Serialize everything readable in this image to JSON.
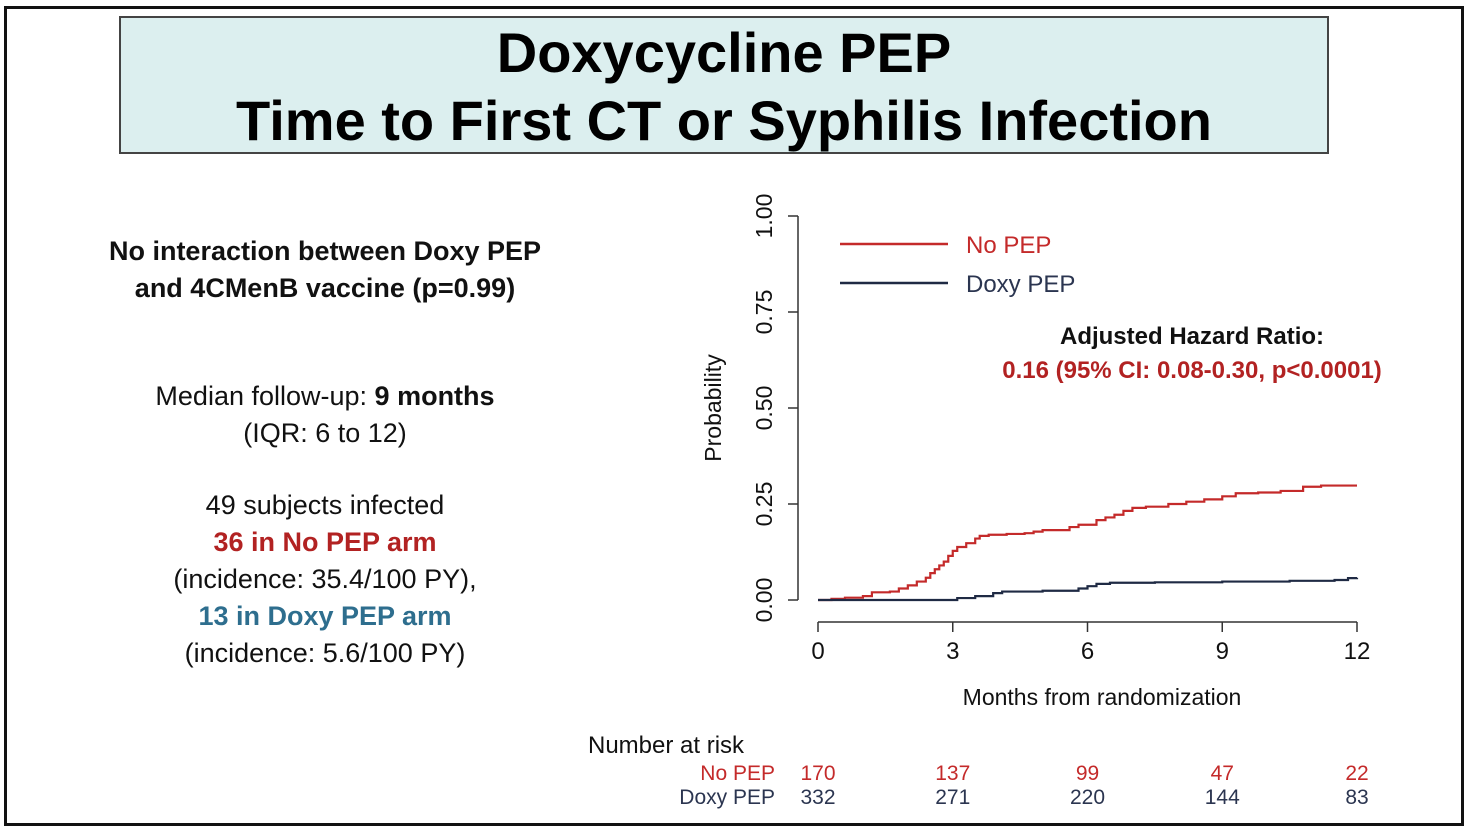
{
  "title": {
    "line1": "Doxycycline PEP",
    "line2": "Time to First CT or Syphilis Infection"
  },
  "left_panel": {
    "interaction_line1": "No interaction between Doxy PEP",
    "interaction_line2": "and 4CMenB vaccine (p=0.99)",
    "followup_prefix": "Median follow-up: ",
    "followup_value": "9 months",
    "followup_iqr": "(IQR: 6 to 12)",
    "infected_total": "49 subjects infected",
    "no_pep_count": "36 in No PEP arm",
    "no_pep_incidence": "(incidence: 35.4/100 PY),",
    "doxy_count": "13 in Doxy PEP arm",
    "doxy_incidence": "(incidence: 5.6/100 PY)"
  },
  "hazard_ratio": {
    "label": "Adjusted Hazard Ratio:",
    "value": "0.16 (95% CI: 0.08-0.30, p<0.0001)"
  },
  "risk_table": {
    "header": "Number at risk",
    "rows": [
      {
        "label": "No PEP",
        "values": [
          "170",
          "137",
          "99",
          "47",
          "22"
        ]
      },
      {
        "label": "Doxy PEP",
        "values": [
          "332",
          "271",
          "220",
          "144",
          "83"
        ]
      }
    ]
  },
  "chart_data": {
    "type": "line",
    "xlabel": "Months from randomization",
    "ylabel": "Probability",
    "xlim": [
      0,
      12
    ],
    "ylim": [
      0,
      1
    ],
    "x_ticks": [
      "0",
      "3",
      "6",
      "9",
      "12"
    ],
    "y_ticks": [
      "0.00",
      "0.25",
      "0.50",
      "0.75",
      "1.00"
    ],
    "legend_position": "top-left",
    "grid": false,
    "series": [
      {
        "name": "No PEP",
        "color": "#c42a2a",
        "points": [
          [
            0,
            0
          ],
          [
            0.3,
            0.003
          ],
          [
            0.6,
            0.006
          ],
          [
            1.0,
            0.01
          ],
          [
            1.2,
            0.02
          ],
          [
            1.6,
            0.022
          ],
          [
            1.8,
            0.03
          ],
          [
            2.0,
            0.038
          ],
          [
            2.2,
            0.048
          ],
          [
            2.4,
            0.058
          ],
          [
            2.5,
            0.07
          ],
          [
            2.6,
            0.08
          ],
          [
            2.7,
            0.09
          ],
          [
            2.8,
            0.1
          ],
          [
            2.9,
            0.115
          ],
          [
            3.0,
            0.128
          ],
          [
            3.1,
            0.138
          ],
          [
            3.3,
            0.148
          ],
          [
            3.5,
            0.16
          ],
          [
            3.6,
            0.167
          ],
          [
            3.8,
            0.17
          ],
          [
            4.2,
            0.172
          ],
          [
            4.6,
            0.174
          ],
          [
            4.8,
            0.178
          ],
          [
            5.0,
            0.182
          ],
          [
            5.6,
            0.19
          ],
          [
            5.8,
            0.196
          ],
          [
            6.2,
            0.208
          ],
          [
            6.4,
            0.215
          ],
          [
            6.6,
            0.222
          ],
          [
            6.8,
            0.232
          ],
          [
            7.0,
            0.24
          ],
          [
            7.3,
            0.243
          ],
          [
            7.8,
            0.25
          ],
          [
            8.2,
            0.256
          ],
          [
            8.6,
            0.262
          ],
          [
            9.0,
            0.27
          ],
          [
            9.3,
            0.278
          ],
          [
            9.8,
            0.28
          ],
          [
            10.3,
            0.284
          ],
          [
            10.8,
            0.295
          ],
          [
            11.2,
            0.298
          ],
          [
            12.0,
            0.298
          ]
        ]
      },
      {
        "name": "Doxy PEP",
        "color": "#1f2a44",
        "points": [
          [
            0,
            0
          ],
          [
            3.0,
            0.0
          ],
          [
            3.1,
            0.005
          ],
          [
            3.5,
            0.01
          ],
          [
            3.9,
            0.018
          ],
          [
            4.1,
            0.022
          ],
          [
            5.0,
            0.024
          ],
          [
            5.8,
            0.03
          ],
          [
            6.0,
            0.036
          ],
          [
            6.2,
            0.042
          ],
          [
            6.5,
            0.045
          ],
          [
            7.5,
            0.046
          ],
          [
            9.0,
            0.048
          ],
          [
            10.5,
            0.05
          ],
          [
            11.5,
            0.052
          ],
          [
            11.8,
            0.057
          ],
          [
            12.0,
            0.058
          ]
        ]
      }
    ]
  }
}
